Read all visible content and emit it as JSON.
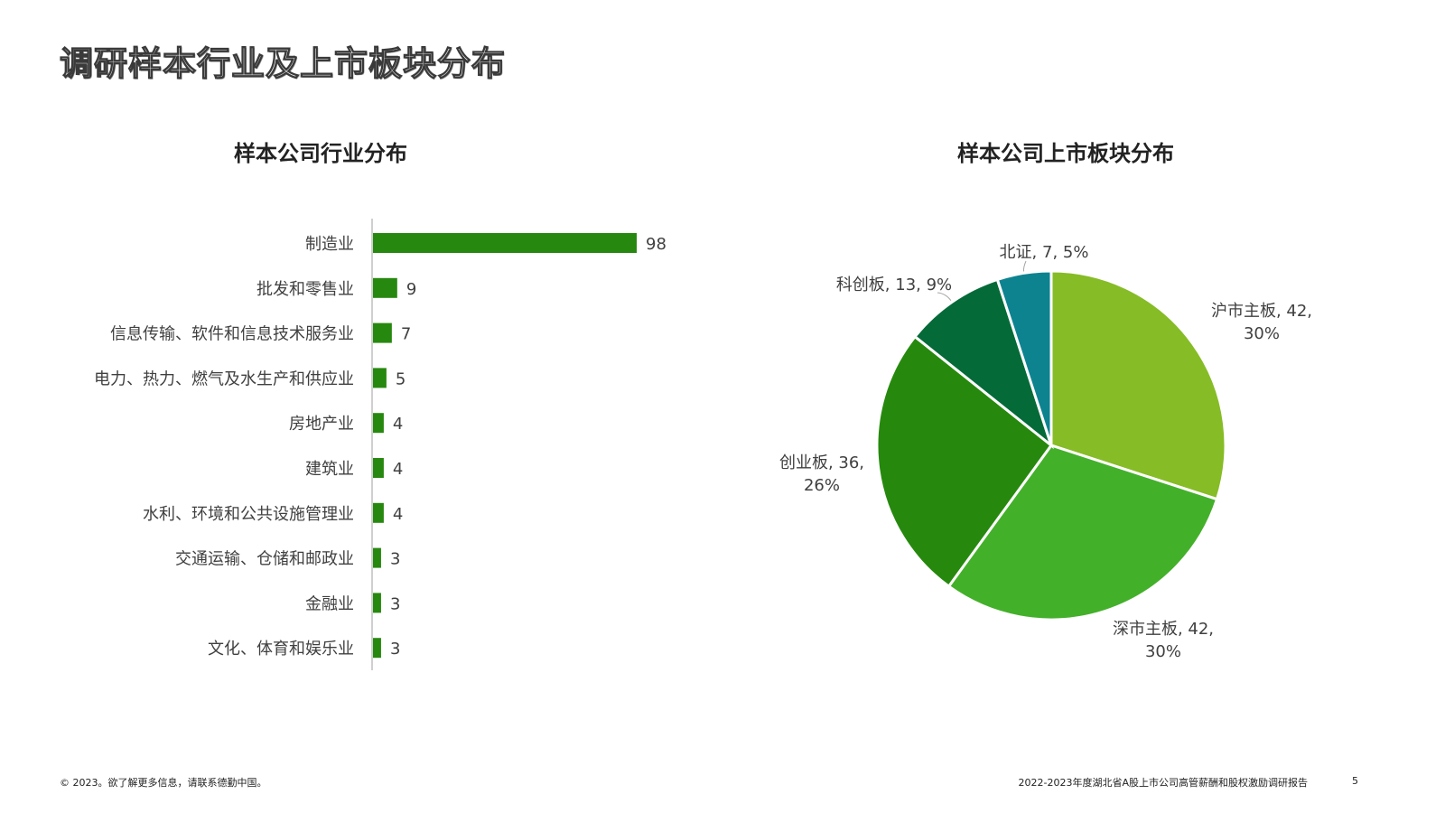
{
  "page": {
    "title": "调研样本行业及上市板块分布",
    "footer_left": "© 2023。欲了解更多信息，请联系德勤中国。",
    "footer_right": "2022-2023年度湖北省A股上市公司高管薪酬和股权激励调研报告",
    "page_number": "5"
  },
  "colors": {
    "bar": "#27880f",
    "axis": "#bfbfbf",
    "label_text": "#404040",
    "pie_slice_border": "#ffffff"
  },
  "chart_data": [
    {
      "type": "bar",
      "orientation": "horizontal",
      "title": "样本公司行业分布",
      "categories": [
        "制造业",
        "批发和零售业",
        "信息传输、软件和信息技术服务业",
        "电力、热力、燃气及水生产和供应业",
        "房地产业",
        "建筑业",
        "水利、环境和公共设施管理业",
        "交通运输、仓储和邮政业",
        "金融业",
        "文化、体育和娱乐业"
      ],
      "values": [
        98,
        9,
        7,
        5,
        4,
        4,
        4,
        3,
        3,
        3
      ],
      "data_labels": [
        "98",
        "9",
        "7",
        "5",
        "4",
        "4",
        "4",
        "3",
        "3",
        "3"
      ],
      "xlim": [
        0,
        100
      ],
      "grid": false,
      "legend": "none"
    },
    {
      "type": "pie",
      "title": "样本公司上市板块分布",
      "categories": [
        "沪市主板",
        "深市主板",
        "创业板",
        "科创板",
        "北证"
      ],
      "values": [
        42,
        42,
        36,
        13,
        7
      ],
      "percentages": [
        30,
        30,
        26,
        9,
        5
      ],
      "colors": [
        "#86bc25",
        "#43b02a",
        "#26890d",
        "#046a38",
        "#0d8390"
      ],
      "data_labels": [
        [
          "沪市主板, 42,",
          "30%"
        ],
        [
          "深市主板, 42,",
          "30%"
        ],
        [
          "创业板, 36,",
          "26%"
        ],
        [
          "科创板, 13, 9%"
        ],
        [
          "北证, 7, 5%"
        ]
      ],
      "legend": "none"
    }
  ]
}
